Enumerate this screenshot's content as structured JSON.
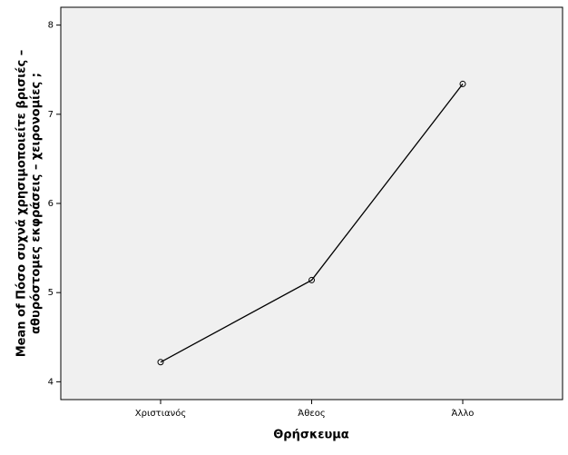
{
  "chart_data": {
    "type": "line",
    "ylabel": [
      "Mean of Πόσο συχνά χρησιμοποιείτε βρισιές –",
      "αθυρόστομες εκφράσεις – χειρονομίες ;"
    ],
    "xlabel": "Θρήσκευμα",
    "categories": [
      "Χριστιανός",
      "Άθεος",
      "Άλλο"
    ],
    "values": [
      4.22,
      5.14,
      7.34
    ],
    "color": "#000000",
    "ylim": [
      3.8,
      8.2
    ],
    "yticks": [
      4,
      5,
      6,
      7,
      8
    ],
    "grid": false
  }
}
